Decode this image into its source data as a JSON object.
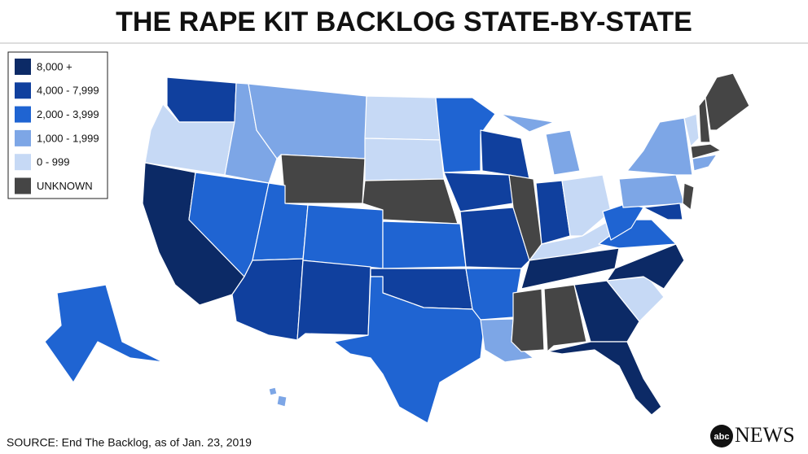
{
  "header": {
    "title": "THE RAPE KIT BACKLOG STATE-BY-STATE"
  },
  "legend": {
    "items": [
      {
        "label": "8,000 +",
        "color": "#0c2a66"
      },
      {
        "label": "4,000 - 7,999",
        "color": "#10409e"
      },
      {
        "label": "2,000 - 3,999",
        "color": "#1f64d2"
      },
      {
        "label": "1,000 - 1,999",
        "color": "#7da6e6"
      },
      {
        "label": "0 - 999",
        "color": "#c6d9f5"
      },
      {
        "label": "UNKNOWN",
        "color": "#454545"
      }
    ]
  },
  "footer": {
    "source": "SOURCE: End The Backlog, as of Jan. 23, 2019"
  },
  "logo": {
    "mark": "abc",
    "text": "NEWS"
  }
}
